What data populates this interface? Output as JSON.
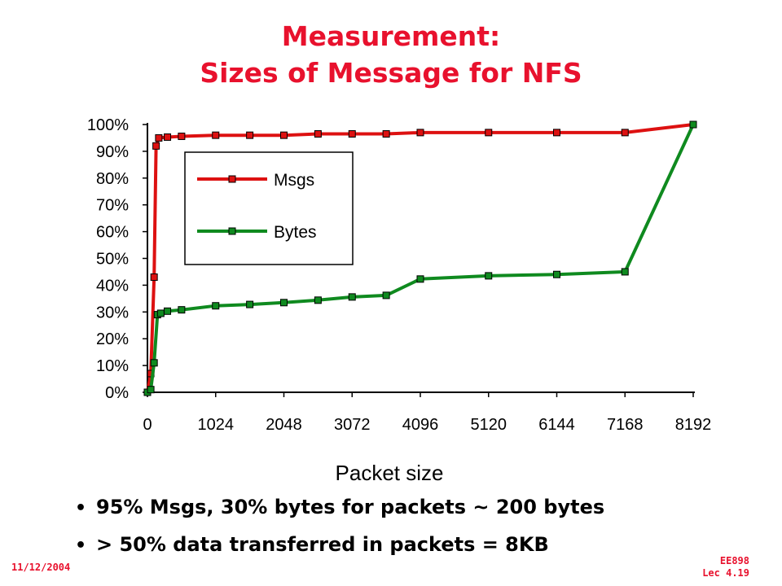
{
  "slide": {
    "title_line1": "Measurement:",
    "title_line2": "Sizes of Message for NFS",
    "bullets": [
      "95% Msgs, 30% bytes for packets ~ 200 bytes",
      "> 50% data transferred in packets = 8KB"
    ],
    "footer_date": "11/12/2004",
    "footer_course": "EE898",
    "footer_lecture": "Lec 4.19"
  },
  "chart_data": {
    "type": "line",
    "title": "",
    "xlabel": "Packet size",
    "ylabel": "",
    "xlim": [
      0,
      8192
    ],
    "ylim": [
      0,
      100
    ],
    "x_ticks": [
      0,
      1024,
      2048,
      3072,
      4096,
      5120,
      6144,
      7168,
      8192
    ],
    "y_ticks": [
      "0%",
      "10%",
      "20%",
      "30%",
      "40%",
      "50%",
      "60%",
      "70%",
      "80%",
      "90%",
      "100%"
    ],
    "grid": false,
    "legend": "inside-upper-left",
    "series": [
      {
        "name": "Msgs",
        "color": "#dd1111",
        "points": [
          [
            0,
            0
          ],
          [
            50,
            7
          ],
          [
            100,
            43
          ],
          [
            130,
            92
          ],
          [
            170,
            95
          ],
          [
            300,
            95.3
          ],
          [
            512,
            95.6
          ],
          [
            1024,
            96
          ],
          [
            1536,
            96
          ],
          [
            2048,
            96
          ],
          [
            2560,
            96.5
          ],
          [
            3072,
            96.5
          ],
          [
            3584,
            96.5
          ],
          [
            4096,
            97
          ],
          [
            5120,
            97
          ],
          [
            6144,
            97
          ],
          [
            7168,
            97
          ],
          [
            8192,
            100
          ]
        ]
      },
      {
        "name": "Bytes",
        "color": "#0f8a1f",
        "points": [
          [
            0,
            0
          ],
          [
            50,
            1
          ],
          [
            100,
            11
          ],
          [
            150,
            29
          ],
          [
            200,
            29.5
          ],
          [
            300,
            30.3
          ],
          [
            512,
            30.8
          ],
          [
            1024,
            32.3
          ],
          [
            1536,
            32.8
          ],
          [
            2048,
            33.5
          ],
          [
            2560,
            34.4
          ],
          [
            3072,
            35.6
          ],
          [
            3584,
            36.2
          ],
          [
            4096,
            42.3
          ],
          [
            5120,
            43.5
          ],
          [
            6144,
            44
          ],
          [
            7168,
            45
          ],
          [
            8192,
            100
          ]
        ]
      }
    ]
  }
}
